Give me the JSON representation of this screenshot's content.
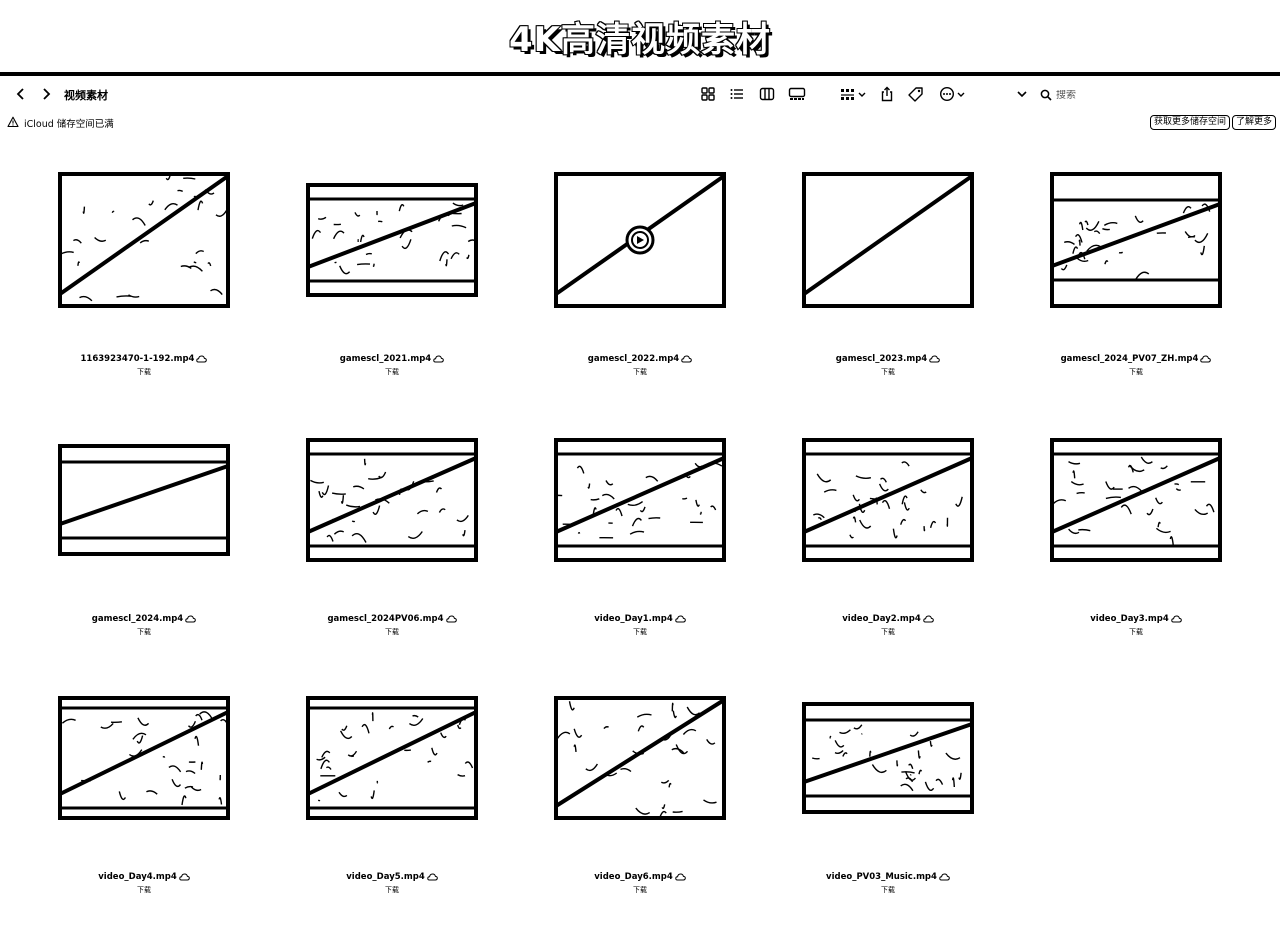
{
  "banner": {
    "title": "4K高清视频素材"
  },
  "toolbar": {
    "folder_title": "视频素材",
    "search_placeholder": "搜索",
    "icons": [
      "chevron-left-icon",
      "chevron-right-icon",
      "grid-view-icon",
      "list-view-icon",
      "column-view-icon",
      "gallery-view-icon",
      "group-icon",
      "share-icon",
      "tag-icon",
      "more-icon",
      "chevron-down-icon",
      "search-icon"
    ]
  },
  "notice": {
    "text": "iCloud 储存空间已满",
    "more_storage_label": "获取更多储存空间",
    "learn_more_label": "了解更多"
  },
  "files": [
    {
      "name": "1163923470-1-192.mp4",
      "sub": "下载",
      "thumb": "style-a"
    },
    {
      "name": "gamescl_2021.mp4",
      "sub": "下载",
      "thumb": "style-b"
    },
    {
      "name": "gamescl_2022.mp4",
      "sub": "下载",
      "thumb": "style-play"
    },
    {
      "name": "gamescl_2023.mp4",
      "sub": "下载",
      "thumb": "style-blank"
    },
    {
      "name": "gamescl_2024_PV07_ZH.mp4",
      "sub": "下载",
      "thumb": "style-c"
    },
    {
      "name": "gamescl_2024.mp4",
      "sub": "下载",
      "thumb": "style-d"
    },
    {
      "name": "gamescl_2024PV06.mp4",
      "sub": "下载",
      "thumb": "style-e"
    },
    {
      "name": "video_Day1.mp4",
      "sub": "下载",
      "thumb": "style-e"
    },
    {
      "name": "video_Day2.mp4",
      "sub": "下载",
      "thumb": "style-e"
    },
    {
      "name": "video_Day3.mp4",
      "sub": "下载",
      "thumb": "style-e"
    },
    {
      "name": "video_Day4.mp4",
      "sub": "下载",
      "thumb": "style-f"
    },
    {
      "name": "video_Day5.mp4",
      "sub": "下载",
      "thumb": "style-f"
    },
    {
      "name": "video_Day6.mp4",
      "sub": "下载",
      "thumb": "style-g"
    },
    {
      "name": "video_PV03_Music.mp4",
      "sub": "下载",
      "thumb": "style-h"
    }
  ]
}
